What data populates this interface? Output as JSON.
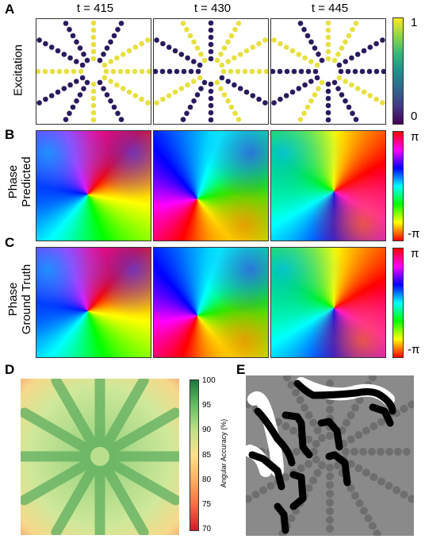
{
  "panels": {
    "A": {
      "letter": "A",
      "row_label": "Excitation",
      "colorbar_ticks": [
        "1",
        "0"
      ]
    },
    "B": {
      "letter": "B",
      "row_label_line1": "Phase",
      "row_label_line2": "Predicted",
      "colorbar_ticks": [
        "π",
        "-π"
      ]
    },
    "C": {
      "letter": "C",
      "row_label_line1": "Phase",
      "row_label_line2": "Ground Truth",
      "colorbar_ticks": [
        "π",
        "-π"
      ]
    },
    "D": {
      "letter": "D",
      "colorbar_label": "Angular Accuracy (%)",
      "colorbar_ticks": [
        "100",
        "95",
        "90",
        "85",
        "80",
        "75",
        "70"
      ]
    },
    "E": {
      "letter": "E"
    }
  },
  "columns": [
    "t = 415",
    "t = 430",
    "t = 445"
  ],
  "colors": {
    "excitation_low": "#2a1a5e",
    "excitation_high": "#e8e040",
    "accuracy_high": "#2e8b4a",
    "accuracy_low": "#c81e2c",
    "gray_bg": "#8a8a8a"
  }
}
